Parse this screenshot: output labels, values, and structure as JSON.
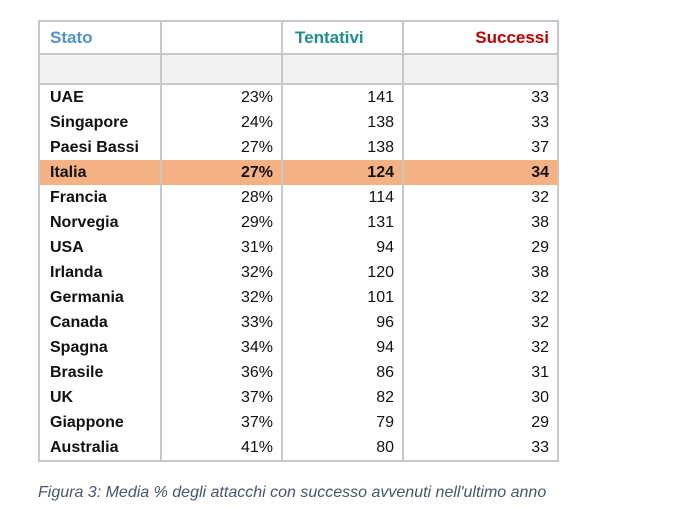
{
  "header": {
    "stato": "Stato",
    "pct": "",
    "tentativi": "Tentativi",
    "successi": "Successi",
    "colors": {
      "stato": "#4f94cd",
      "tentativi": "#1f8f8f",
      "successi": "#c00000"
    }
  },
  "rows": [
    {
      "country": "UAE",
      "pct": "23%",
      "attempts": "141",
      "success": "33"
    },
    {
      "country": "Singapore",
      "pct": "24%",
      "attempts": "138",
      "success": "33"
    },
    {
      "country": "Paesi Bassi",
      "pct": "27%",
      "attempts": "138",
      "success": "37"
    },
    {
      "country": "Italia",
      "pct": "27%",
      "attempts": "124",
      "success": "34",
      "highlight": true
    },
    {
      "country": "Francia",
      "pct": "28%",
      "attempts": "114",
      "success": "32"
    },
    {
      "country": "Norvegia",
      "pct": "29%",
      "attempts": "131",
      "success": "38"
    },
    {
      "country": "USA",
      "pct": "31%",
      "attempts": "94",
      "success": "29"
    },
    {
      "country": "Irlanda",
      "pct": "32%",
      "attempts": "120",
      "success": "38"
    },
    {
      "country": "Germania",
      "pct": "32%",
      "attempts": "101",
      "success": "32"
    },
    {
      "country": "Canada",
      "pct": "33%",
      "attempts": "96",
      "success": "32"
    },
    {
      "country": "Spagna",
      "pct": "34%",
      "attempts": "94",
      "success": "32"
    },
    {
      "country": "Brasile",
      "pct": "36%",
      "attempts": "86",
      "success": "31"
    },
    {
      "country": "UK",
      "pct": "37%",
      "attempts": "82",
      "success": "30"
    },
    {
      "country": "Giappone",
      "pct": "37%",
      "attempts": "79",
      "success": "29"
    },
    {
      "country": "Australia",
      "pct": "41%",
      "attempts": "80",
      "success": "33"
    }
  ],
  "caption": "Figura 3: Media % degli attacchi con successo avvenuti nell'ultimo anno",
  "highlight_color": "#f4b183"
}
